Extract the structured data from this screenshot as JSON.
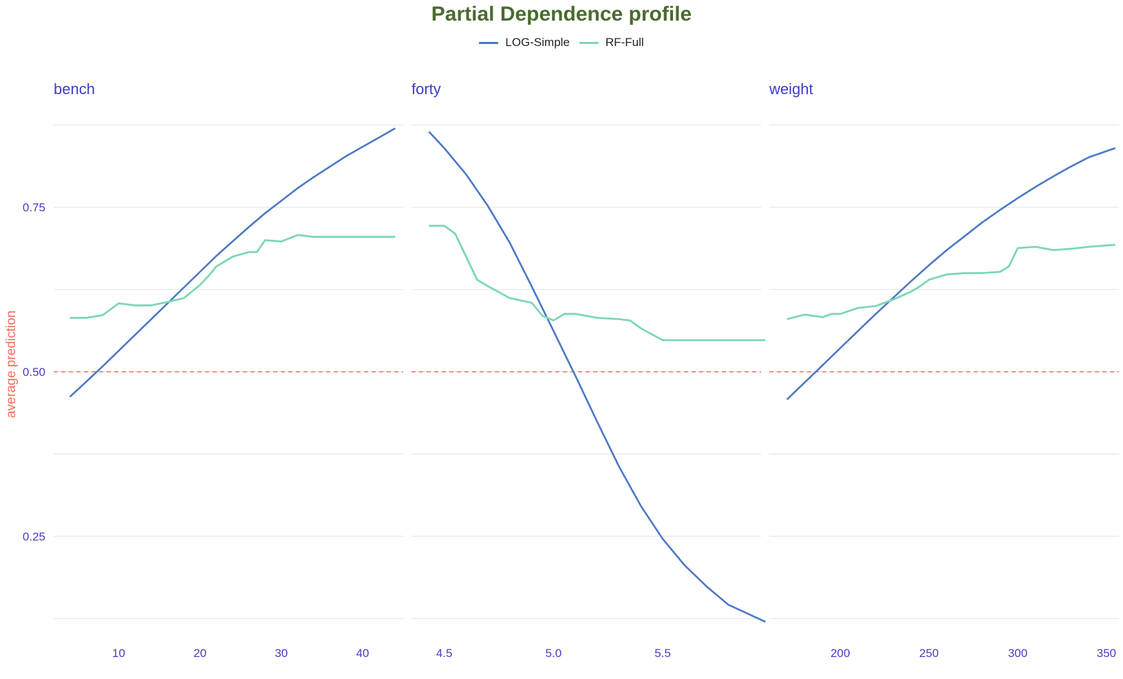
{
  "chart_data": {
    "type": "line",
    "title": "Partial Dependence profile",
    "ylabel": "average prediction",
    "ylim": [
      0.125,
      0.875
    ],
    "y_ticks": [
      0.25,
      0.5,
      0.75
    ],
    "y_tick_labels": [
      "0.25",
      "0.50",
      "0.75"
    ],
    "reference_line": {
      "y": 0.5,
      "style": "dashed",
      "color": "#f36d5d"
    },
    "legend": {
      "placement": "top-center",
      "entries": [
        "LOG-Simple",
        "RF-Full"
      ]
    },
    "series_colors": {
      "LOG-Simple": "#4a78c4",
      "RF-Full": "#7dd6b8"
    },
    "panels": [
      {
        "label": "bench",
        "xlim": [
          2,
          45
        ],
        "x_ticks": [
          10,
          20,
          30,
          40
        ],
        "x_tick_labels": [
          "10",
          "20",
          "30",
          "40"
        ],
        "series": [
          {
            "name": "LOG-Simple",
            "x": [
              4,
              6,
              8,
              10,
              12,
              14,
              16,
              18,
              20,
              22,
              24,
              26,
              28,
              30,
              32,
              34,
              36,
              38,
              40,
              42,
              44
            ],
            "y": [
              0.462,
              0.485,
              0.508,
              0.532,
              0.556,
              0.58,
              0.604,
              0.628,
              0.652,
              0.676,
              0.698,
              0.72,
              0.741,
              0.76,
              0.779,
              0.796,
              0.812,
              0.828,
              0.842,
              0.856,
              0.87
            ]
          },
          {
            "name": "RF-Full",
            "x": [
              4,
              6,
              8,
              10,
              12,
              14,
              16,
              18,
              20,
              21,
              22,
              24,
              26,
              27,
              28,
              30,
              32,
              34,
              36,
              38,
              40,
              42,
              44
            ],
            "y": [
              0.582,
              0.582,
              0.586,
              0.604,
              0.601,
              0.601,
              0.606,
              0.612,
              0.632,
              0.645,
              0.66,
              0.675,
              0.682,
              0.682,
              0.7,
              0.698,
              0.708,
              0.705,
              0.705,
              0.705,
              0.705,
              0.705,
              0.705
            ]
          }
        ]
      },
      {
        "label": "forty",
        "xlim": [
          4.35,
          5.95
        ],
        "x_ticks": [
          4.5,
          5.0,
          5.5
        ],
        "x_tick_labels": [
          "4.5",
          "5.0",
          "5.5"
        ],
        "series": [
          {
            "name": "LOG-Simple",
            "x": [
              4.43,
              4.5,
              4.6,
              4.7,
              4.8,
              4.9,
              5.0,
              5.1,
              5.2,
              5.3,
              5.4,
              5.5,
              5.6,
              5.7,
              5.8,
              5.97
            ],
            "y": [
              0.865,
              0.84,
              0.8,
              0.752,
              0.696,
              0.63,
              0.562,
              0.494,
              0.424,
              0.356,
              0.296,
              0.246,
              0.206,
              0.174,
              0.146,
              0.12
            ]
          },
          {
            "name": "RF-Full",
            "x": [
              4.43,
              4.5,
              4.55,
              4.6,
              4.65,
              4.7,
              4.8,
              4.9,
              4.95,
              5.0,
              5.05,
              5.1,
              5.2,
              5.3,
              5.35,
              5.4,
              5.5,
              5.6,
              5.7,
              5.8,
              5.9,
              5.97
            ],
            "y": [
              0.722,
              0.722,
              0.71,
              0.675,
              0.64,
              0.63,
              0.612,
              0.605,
              0.585,
              0.578,
              0.588,
              0.588,
              0.582,
              0.58,
              0.578,
              0.566,
              0.548,
              0.548,
              0.548,
              0.548,
              0.548,
              0.548
            ]
          }
        ]
      },
      {
        "label": "weight",
        "xlim": [
          160,
          357
        ],
        "x_ticks": [
          200,
          250,
          300,
          350
        ],
        "x_tick_labels": [
          "200",
          "250",
          "300",
          "350"
        ],
        "series": [
          {
            "name": "LOG-Simple",
            "x": [
              170,
              180,
              190,
              200,
              210,
              220,
              230,
              240,
              250,
              260,
              270,
              280,
              290,
              300,
              310,
              320,
              330,
              340,
              355
            ],
            "y": [
              0.458,
              0.484,
              0.51,
              0.536,
              0.562,
              0.588,
              0.613,
              0.638,
              0.662,
              0.685,
              0.706,
              0.727,
              0.746,
              0.764,
              0.781,
              0.797,
              0.812,
              0.826,
              0.84
            ]
          },
          {
            "name": "RF-Full",
            "x": [
              170,
              180,
              190,
              195,
              200,
              210,
              220,
              230,
              240,
              245,
              250,
              260,
              270,
              280,
              290,
              295,
              300,
              310,
              320,
              330,
              340,
              355
            ],
            "y": [
              0.58,
              0.587,
              0.583,
              0.588,
              0.588,
              0.597,
              0.6,
              0.61,
              0.622,
              0.63,
              0.64,
              0.648,
              0.65,
              0.65,
              0.652,
              0.66,
              0.688,
              0.69,
              0.685,
              0.687,
              0.69,
              0.693
            ]
          }
        ]
      }
    ]
  }
}
